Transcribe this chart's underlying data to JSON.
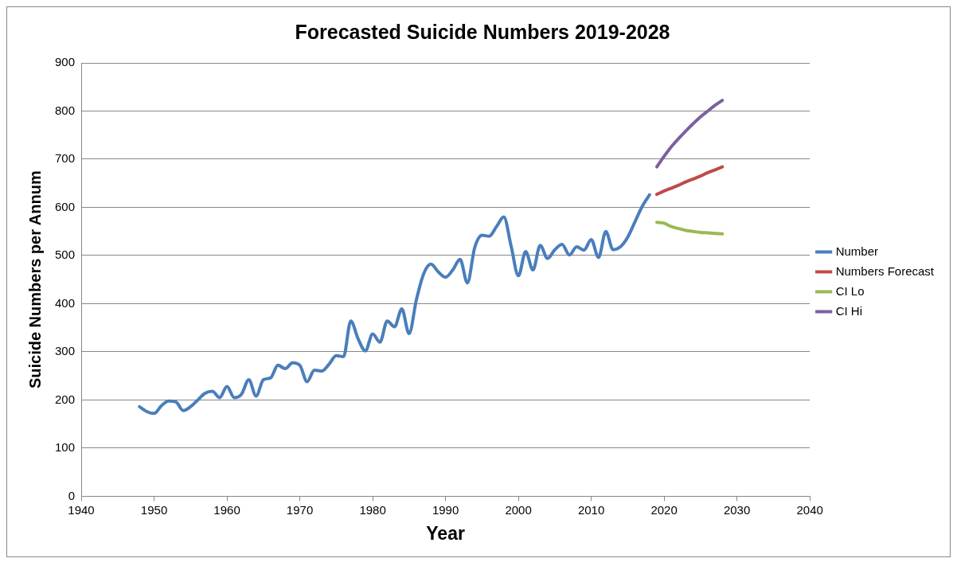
{
  "chart_data": {
    "type": "line",
    "title": "Forecasted Suicide Numbers 2019-2028",
    "xlabel": "Year",
    "ylabel": "Suicide Numbers per Annum",
    "xlim": [
      1940,
      2040
    ],
    "xticks": [
      1940,
      1950,
      1960,
      1970,
      1980,
      1990,
      2000,
      2010,
      2020,
      2030,
      2040
    ],
    "ylim": [
      0,
      900
    ],
    "yticks": [
      0,
      100,
      200,
      300,
      400,
      500,
      600,
      700,
      800,
      900
    ],
    "grid": "y",
    "legend": "right",
    "marker": "none",
    "line_style": "solid",
    "series": [
      {
        "name": "Number",
        "color": "#4a7ebb",
        "x": [
          1948,
          1949,
          1950,
          1951,
          1952,
          1953,
          1954,
          1955,
          1956,
          1957,
          1958,
          1959,
          1960,
          1961,
          1962,
          1963,
          1964,
          1965,
          1966,
          1967,
          1968,
          1969,
          1970,
          1971,
          1972,
          1973,
          1974,
          1975,
          1976,
          1977,
          1978,
          1979,
          1980,
          1981,
          1982,
          1983,
          1984,
          1985,
          1986,
          1987,
          1988,
          1989,
          1990,
          1991,
          1992,
          1993,
          1994,
          1995,
          1996,
          1997,
          1998,
          1999,
          2000,
          2001,
          2002,
          2003,
          2004,
          2005,
          2006,
          2007,
          2008,
          2009,
          2010,
          2011,
          2012,
          2013,
          2014,
          2015,
          2016,
          2017,
          2018
        ],
        "values": [
          186,
          176,
          172,
          188,
          198,
          196,
          178,
          186,
          200,
          214,
          218,
          205,
          228,
          205,
          212,
          242,
          208,
          242,
          246,
          272,
          265,
          277,
          272,
          238,
          262,
          260,
          274,
          292,
          290,
          364,
          327,
          302,
          337,
          320,
          364,
          352,
          389,
          338,
          408,
          462,
          482,
          466,
          455,
          470,
          492,
          443,
          516,
          542,
          540,
          560,
          580,
          520,
          458,
          508,
          470,
          521,
          494,
          512,
          523,
          501,
          518,
          511,
          533,
          496,
          550,
          512,
          518,
          538,
          570,
          602,
          626
        ]
      },
      {
        "name": "Numbers Forecast",
        "color": "#be4b48",
        "x": [
          2019,
          2020,
          2021,
          2022,
          2023,
          2024,
          2025,
          2026,
          2027,
          2028
        ],
        "values": [
          627,
          634,
          640,
          646,
          653,
          659,
          665,
          672,
          678,
          684
        ]
      },
      {
        "name": "CI Lo",
        "color": "#98b954",
        "x": [
          2019,
          2020,
          2021,
          2022,
          2023,
          2024,
          2025,
          2026,
          2027,
          2028
        ],
        "values": [
          569,
          567,
          560,
          556,
          552,
          550,
          548,
          547,
          546,
          545
        ]
      },
      {
        "name": "CI Hi",
        "color": "#7d60a0",
        "x": [
          2019,
          2020,
          2021,
          2022,
          2023,
          2024,
          2025,
          2026,
          2027,
          2028
        ],
        "values": [
          684,
          706,
          726,
          743,
          759,
          774,
          788,
          800,
          812,
          822
        ]
      }
    ]
  }
}
